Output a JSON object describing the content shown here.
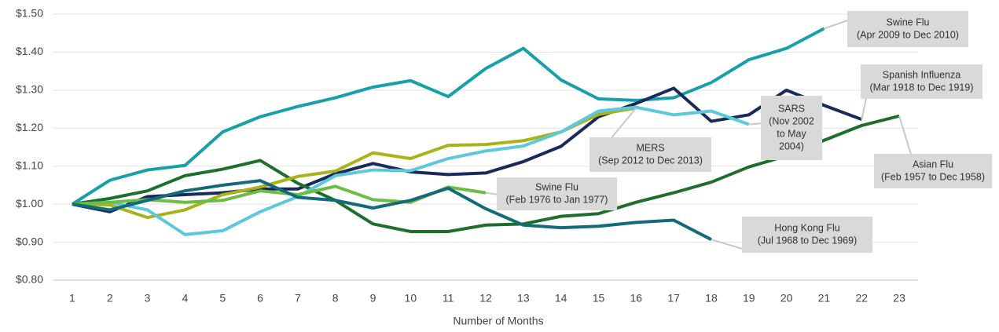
{
  "chart_data": {
    "type": "line",
    "x_label": "Number of Months",
    "x": [
      1,
      2,
      3,
      4,
      5,
      6,
      7,
      8,
      9,
      10,
      11,
      12,
      13,
      14,
      15,
      16,
      17,
      18,
      19,
      20,
      21,
      22,
      23
    ],
    "xlim": [
      0.5,
      23.5
    ],
    "xticks": [
      1,
      2,
      3,
      4,
      5,
      6,
      7,
      8,
      9,
      10,
      11,
      12,
      13,
      14,
      15,
      16,
      17,
      18,
      19,
      20,
      21,
      22,
      23
    ],
    "ylim": [
      0.8,
      1.5
    ],
    "yticks": [
      {
        "value": 0.8,
        "label": "$0.80"
      },
      {
        "value": 0.9,
        "label": "$0.90"
      },
      {
        "value": 1.0,
        "label": "$1.00"
      },
      {
        "value": 1.1,
        "label": "$1.10"
      },
      {
        "value": 1.2,
        "label": "$1.20"
      },
      {
        "value": 1.3,
        "label": "$1.30"
      },
      {
        "value": 1.4,
        "label": "$1.40"
      },
      {
        "value": 1.5,
        "label": "$1.50"
      }
    ],
    "grid": true,
    "series": [
      {
        "name": "Swine Flu",
        "label_lines": [
          "(Apr 2009 to Dec 2010)"
        ],
        "color": "#17a0ab",
        "values": [
          1.0,
          1.063,
          1.09,
          1.102,
          1.19,
          1.23,
          1.257,
          1.28,
          1.308,
          1.325,
          1.283,
          1.357,
          1.41,
          1.327,
          1.277,
          1.273,
          1.28,
          1.32,
          1.38,
          1.41,
          1.462,
          null,
          null
        ]
      },
      {
        "name": "Spanish Influenza",
        "label_lines": [
          "(Mar 1918 to Dec 1919)"
        ],
        "color": "#1b2a5c",
        "values": [
          1.0,
          0.98,
          1.02,
          1.025,
          1.03,
          1.04,
          1.04,
          1.08,
          1.107,
          1.085,
          1.078,
          1.082,
          1.112,
          1.152,
          1.23,
          1.265,
          1.305,
          1.218,
          1.235,
          1.3,
          1.26,
          1.223,
          null
        ]
      },
      {
        "name": "Asian Flu",
        "label_lines": [
          "(Feb 1957 to Dec 1958)"
        ],
        "color": "#1e6e2e",
        "values": [
          1.0,
          1.015,
          1.035,
          1.075,
          1.092,
          1.115,
          1.055,
          1.01,
          0.948,
          0.928,
          0.928,
          0.945,
          0.948,
          0.968,
          0.975,
          1.005,
          1.03,
          1.058,
          1.098,
          1.127,
          1.168,
          1.207,
          1.232
        ]
      },
      {
        "name": "MERS",
        "label_lines": [
          "(Sep 2012 to Dec 2013)"
        ],
        "color": "#a8b31a",
        "values": [
          1.0,
          0.998,
          0.965,
          0.985,
          1.025,
          1.045,
          1.073,
          1.087,
          1.135,
          1.12,
          1.155,
          1.157,
          1.167,
          1.19,
          1.236,
          1.253,
          null,
          null,
          null,
          null,
          null,
          null,
          null
        ]
      },
      {
        "name": "SARS",
        "label_lines": [
          "(Nov 2002",
          "to May",
          "2004)"
        ],
        "color": "#5bc8dc",
        "values": [
          1.0,
          1.005,
          0.985,
          0.92,
          0.93,
          0.98,
          1.02,
          1.075,
          1.09,
          1.088,
          1.12,
          1.14,
          1.153,
          1.19,
          1.245,
          1.255,
          1.235,
          1.245,
          1.21,
          null,
          null,
          null,
          null
        ]
      },
      {
        "name": "Swine Flu",
        "label_lines": [
          "(Feb 1976 to Jan 1977)"
        ],
        "color": "#6dbd45",
        "values": [
          1.0,
          1.005,
          1.012,
          1.005,
          1.01,
          1.035,
          1.025,
          1.047,
          1.012,
          1.005,
          1.045,
          1.03,
          null,
          null,
          null,
          null,
          null,
          null,
          null,
          null,
          null,
          null,
          null
        ]
      },
      {
        "name": "Hong Kong Flu",
        "label_lines": [
          "(Jul 1968 to Dec 1969)"
        ],
        "color": "#136a7a",
        "values": [
          1.0,
          0.985,
          1.01,
          1.035,
          1.05,
          1.062,
          1.018,
          1.01,
          0.99,
          1.01,
          1.042,
          0.988,
          0.945,
          0.938,
          0.942,
          0.952,
          0.958,
          0.907,
          null,
          null,
          null,
          null,
          null
        ]
      }
    ]
  }
}
